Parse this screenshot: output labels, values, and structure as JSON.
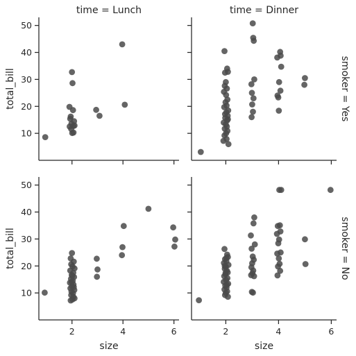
{
  "chart_data": {
    "type": "scatter",
    "layout": "facet-grid-2x2",
    "xlabel": "size",
    "ylabel": "total_bill",
    "xlim": [
      0.7,
      6.2
    ],
    "ylim": [
      0,
      53
    ],
    "xticks": [
      2,
      4,
      6
    ],
    "yticks": [
      10,
      20,
      30,
      40,
      50
    ],
    "marker_color": "#4a4a4a",
    "col_titles": [
      "time = Lunch",
      "time = Dinner"
    ],
    "row_titles": [
      "smoker = Yes",
      "smoker = No"
    ],
    "panels": [
      {
        "col": "time = Lunch",
        "row": "smoker = Yes",
        "points": [
          [
            0.95,
            8.6
          ],
          [
            1.9,
            19.8
          ],
          [
            1.95,
            16.2
          ],
          [
            1.93,
            15.4
          ],
          [
            1.98,
            13.6
          ],
          [
            2.05,
            12.7
          ],
          [
            1.91,
            12.5
          ],
          [
            2.1,
            12.9
          ],
          [
            2.0,
            32.7
          ],
          [
            2.02,
            28.6
          ],
          [
            2.04,
            18.6
          ],
          [
            1.97,
            11.6
          ],
          [
            2.06,
            10.3
          ],
          [
            2.01,
            10.1
          ],
          [
            2.08,
            14.5
          ],
          [
            2.95,
            18.7
          ],
          [
            3.08,
            16.5
          ],
          [
            3.97,
            43.0
          ],
          [
            4.07,
            20.6
          ]
        ]
      },
      {
        "col": "time = Dinner",
        "row": "smoker = Yes",
        "points": [
          [
            1.05,
            3.1
          ],
          [
            1.95,
            40.5
          ],
          [
            2.05,
            34.0
          ],
          [
            2.08,
            32.8
          ],
          [
            1.97,
            32.5
          ],
          [
            2.0,
            29.0
          ],
          [
            1.96,
            27.6
          ],
          [
            2.04,
            26.6
          ],
          [
            1.93,
            25.4
          ],
          [
            2.01,
            24.2
          ],
          [
            2.06,
            22.5
          ],
          [
            1.99,
            21.5
          ],
          [
            2.03,
            20.3
          ],
          [
            1.94,
            19.7
          ],
          [
            2.09,
            18.5
          ],
          [
            2.02,
            17.8
          ],
          [
            1.97,
            17.1
          ],
          [
            2.07,
            16.5
          ],
          [
            1.98,
            15.7
          ],
          [
            2.05,
            14.8
          ],
          [
            1.92,
            14.0
          ],
          [
            2.0,
            13.3
          ],
          [
            2.04,
            12.5
          ],
          [
            1.96,
            11.7
          ],
          [
            2.06,
            10.9
          ],
          [
            2.01,
            10.0
          ],
          [
            1.95,
            9.2
          ],
          [
            2.03,
            7.9
          ],
          [
            2.1,
            6.0
          ],
          [
            1.91,
            7.2
          ],
          [
            2.08,
            15.2
          ],
          [
            3.02,
            50.8
          ],
          [
            3.04,
            45.4
          ],
          [
            3.06,
            44.3
          ],
          [
            2.97,
            28.2
          ],
          [
            3.08,
            30.0
          ],
          [
            2.99,
            25.0
          ],
          [
            3.05,
            23.0
          ],
          [
            3.0,
            20.7
          ],
          [
            3.03,
            18.0
          ],
          [
            2.98,
            16.0
          ],
          [
            3.95,
            38.1
          ],
          [
            4.06,
            40.2
          ],
          [
            4.08,
            38.8
          ],
          [
            4.1,
            34.7
          ],
          [
            4.02,
            29.0
          ],
          [
            3.96,
            24.0
          ],
          [
            3.99,
            23.3
          ],
          [
            4.07,
            25.8
          ],
          [
            4.01,
            18.4
          ],
          [
            5.0,
            30.5
          ],
          [
            4.98,
            28.0
          ]
        ]
      },
      {
        "col": "time = Lunch",
        "row": "smoker = No",
        "points": [
          [
            0.93,
            10.1
          ],
          [
            2.0,
            24.8
          ],
          [
            1.95,
            22.8
          ],
          [
            2.07,
            21.6
          ],
          [
            1.97,
            20.6
          ],
          [
            2.02,
            19.8
          ],
          [
            2.1,
            19.1
          ],
          [
            1.93,
            18.3
          ],
          [
            2.05,
            17.5
          ],
          [
            1.99,
            16.7
          ],
          [
            2.08,
            15.9
          ],
          [
            1.96,
            15.2
          ],
          [
            2.03,
            14.5
          ],
          [
            1.92,
            13.8
          ],
          [
            2.06,
            13.1
          ],
          [
            2.0,
            12.4
          ],
          [
            1.94,
            11.7
          ],
          [
            2.09,
            11.1
          ],
          [
            1.98,
            10.5
          ],
          [
            2.04,
            9.9
          ],
          [
            1.97,
            9.2
          ],
          [
            2.05,
            8.6
          ],
          [
            2.1,
            8.0
          ],
          [
            2.02,
            7.6
          ],
          [
            1.95,
            7.2
          ],
          [
            2.07,
            12.2
          ],
          [
            1.99,
            14.0
          ],
          [
            2.01,
            16.3
          ],
          [
            2.97,
            22.7
          ],
          [
            3.0,
            18.7
          ],
          [
            2.98,
            16.0
          ],
          [
            4.03,
            34.8
          ],
          [
            3.98,
            27.0
          ],
          [
            3.96,
            24.0
          ],
          [
            5.0,
            41.2
          ],
          [
            5.97,
            34.3
          ],
          [
            6.05,
            29.8
          ],
          [
            6.02,
            27.2
          ]
        ]
      },
      {
        "col": "time = Dinner",
        "row": "smoker = No",
        "points": [
          [
            0.98,
            7.3
          ],
          [
            1.95,
            26.3
          ],
          [
            2.05,
            24.2
          ],
          [
            2.08,
            23.3
          ],
          [
            1.97,
            22.5
          ],
          [
            2.02,
            21.8
          ],
          [
            1.93,
            21.1
          ],
          [
            2.1,
            20.4
          ],
          [
            2.0,
            19.7
          ],
          [
            1.96,
            19.0
          ],
          [
            2.04,
            18.3
          ],
          [
            2.07,
            17.6
          ],
          [
            1.99,
            16.9
          ],
          [
            1.94,
            16.2
          ],
          [
            2.06,
            15.5
          ],
          [
            2.01,
            14.8
          ],
          [
            1.92,
            14.1
          ],
          [
            2.09,
            13.4
          ],
          [
            1.98,
            12.7
          ],
          [
            2.03,
            12.0
          ],
          [
            1.95,
            11.3
          ],
          [
            2.05,
            10.6
          ],
          [
            2.0,
            10.0
          ],
          [
            1.97,
            9.2
          ],
          [
            2.08,
            8.6
          ],
          [
            2.02,
            23.0
          ],
          [
            1.99,
            17.4
          ],
          [
            2.04,
            13.0
          ],
          [
            1.96,
            20.0
          ],
          [
            3.08,
            38.0
          ],
          [
            3.05,
            35.8
          ],
          [
            2.95,
            31.3
          ],
          [
            3.1,
            28.0
          ],
          [
            2.98,
            26.4
          ],
          [
            3.02,
            23.5
          ],
          [
            3.06,
            22.3
          ],
          [
            3.0,
            21.0
          ],
          [
            2.97,
            19.5
          ],
          [
            3.04,
            18.3
          ],
          [
            3.01,
            17.3
          ],
          [
            2.96,
            16.6
          ],
          [
            3.07,
            16.2
          ],
          [
            2.99,
            10.4
          ],
          [
            3.03,
            10.1
          ],
          [
            4.03,
            48.2
          ],
          [
            4.1,
            48.2
          ],
          [
            4.05,
            35.1
          ],
          [
            3.97,
            34.8
          ],
          [
            4.07,
            32.8
          ],
          [
            3.94,
            31.9
          ],
          [
            4.02,
            29.8
          ],
          [
            3.99,
            28.4
          ],
          [
            4.08,
            25.0
          ],
          [
            3.95,
            24.6
          ],
          [
            4.01,
            22.8
          ],
          [
            4.04,
            20.8
          ],
          [
            3.98,
            19.8
          ],
          [
            4.06,
            18.2
          ],
          [
            3.96,
            16.5
          ],
          [
            5.0,
            29.9
          ],
          [
            5.02,
            20.7
          ],
          [
            5.97,
            48.2
          ]
        ]
      }
    ]
  }
}
